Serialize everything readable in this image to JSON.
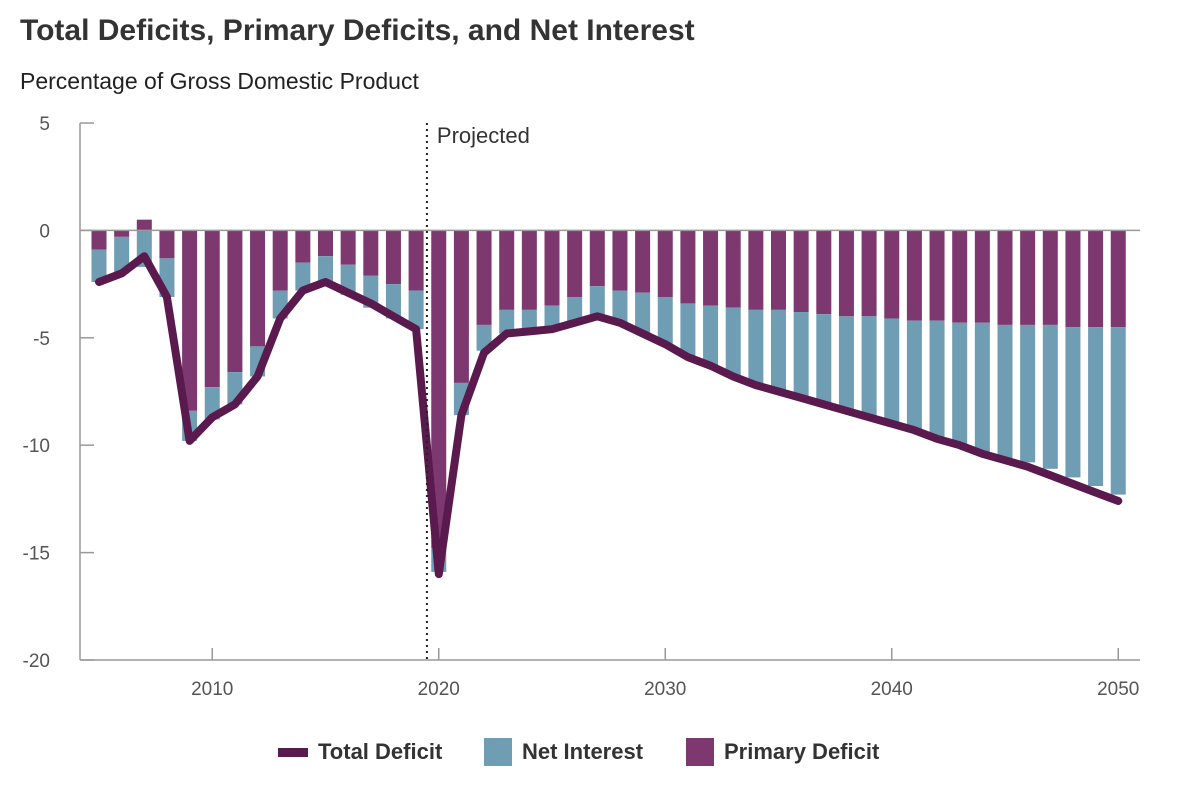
{
  "title": "Total Deficits, Primary Deficits, and Net Interest",
  "subtitle": "Percentage of Gross Domestic Product",
  "colors": {
    "total_deficit": "#5a1a4e",
    "net_interest": "#6f9db3",
    "primary_deficit": "#7e3870",
    "axis": "#999999"
  },
  "legend": {
    "total_deficit": "Total Deficit",
    "net_interest": "Net Interest",
    "primary_deficit": "Primary Deficit"
  },
  "chart_data": {
    "type": "bar",
    "stacked": true,
    "title": "Total Deficits, Primary Deficits, and Net Interest",
    "subtitle": "Percentage of Gross Domestic Product",
    "xlabel": "",
    "ylabel": "",
    "ylim": [
      -20,
      5
    ],
    "y_ticks": [
      5,
      0,
      -5,
      -10,
      -15,
      -20
    ],
    "x_ticks": [
      2010,
      2020,
      2030,
      2040,
      2050
    ],
    "annotation": {
      "label": "Projected",
      "x": 2019.5,
      "style": "dotted vertical line"
    },
    "legend_position": "bottom",
    "grid": false,
    "x": [
      2005,
      2006,
      2007,
      2008,
      2009,
      2010,
      2011,
      2012,
      2013,
      2014,
      2015,
      2016,
      2017,
      2018,
      2019,
      2020,
      2021,
      2022,
      2023,
      2024,
      2025,
      2026,
      2027,
      2028,
      2029,
      2030,
      2031,
      2032,
      2033,
      2034,
      2035,
      2036,
      2037,
      2038,
      2039,
      2040,
      2041,
      2042,
      2043,
      2044,
      2045,
      2046,
      2047,
      2048,
      2049,
      2050
    ],
    "series": [
      {
        "name": "Primary Deficit",
        "type": "bar",
        "values": [
          -0.9,
          -0.3,
          0.5,
          -1.3,
          -8.4,
          -7.3,
          -6.6,
          -5.4,
          -2.8,
          -1.5,
          -1.2,
          -1.6,
          -2.1,
          -2.5,
          -2.8,
          -14.8,
          -7.1,
          -4.4,
          -3.7,
          -3.7,
          -3.5,
          -3.1,
          -2.6,
          -2.8,
          -2.9,
          -3.1,
          -3.4,
          -3.5,
          -3.6,
          -3.7,
          -3.7,
          -3.8,
          -3.9,
          -4.0,
          -4.0,
          -4.1,
          -4.2,
          -4.2,
          -4.3,
          -4.3,
          -4.4,
          -4.4,
          -4.4,
          -4.5,
          -4.5,
          -4.5
        ]
      },
      {
        "name": "Net Interest",
        "type": "bar",
        "values": [
          -1.5,
          -1.7,
          -1.7,
          -1.8,
          -1.4,
          -1.5,
          -1.5,
          -1.4,
          -1.3,
          -1.3,
          -1.3,
          -1.4,
          -1.5,
          -1.6,
          -1.8,
          -1.1,
          -1.5,
          -1.2,
          -1.1,
          -1.0,
          -1.1,
          -1.3,
          -1.4,
          -1.5,
          -1.9,
          -2.2,
          -2.5,
          -2.8,
          -3.2,
          -3.5,
          -3.7,
          -4.0,
          -4.2,
          -4.4,
          -4.6,
          -4.8,
          -5.1,
          -5.4,
          -5.7,
          -6.0,
          -6.2,
          -6.4,
          -6.7,
          -7.0,
          -7.4,
          -7.8
        ]
      },
      {
        "name": "Total Deficit",
        "type": "line",
        "values": [
          -2.4,
          -2.0,
          -1.2,
          -3.1,
          -9.8,
          -8.7,
          -8.1,
          -6.8,
          -4.1,
          -2.8,
          -2.4,
          -2.9,
          -3.4,
          -4.0,
          -4.6,
          -16.0,
          -8.6,
          -5.7,
          -4.8,
          -4.7,
          -4.6,
          -4.3,
          -4.0,
          -4.3,
          -4.8,
          -5.3,
          -5.9,
          -6.3,
          -6.8,
          -7.2,
          -7.5,
          -7.8,
          -8.1,
          -8.4,
          -8.7,
          -9.0,
          -9.3,
          -9.7,
          -10.0,
          -10.4,
          -10.7,
          -11.0,
          -11.4,
          -11.8,
          -12.2,
          -12.6
        ]
      }
    ]
  }
}
